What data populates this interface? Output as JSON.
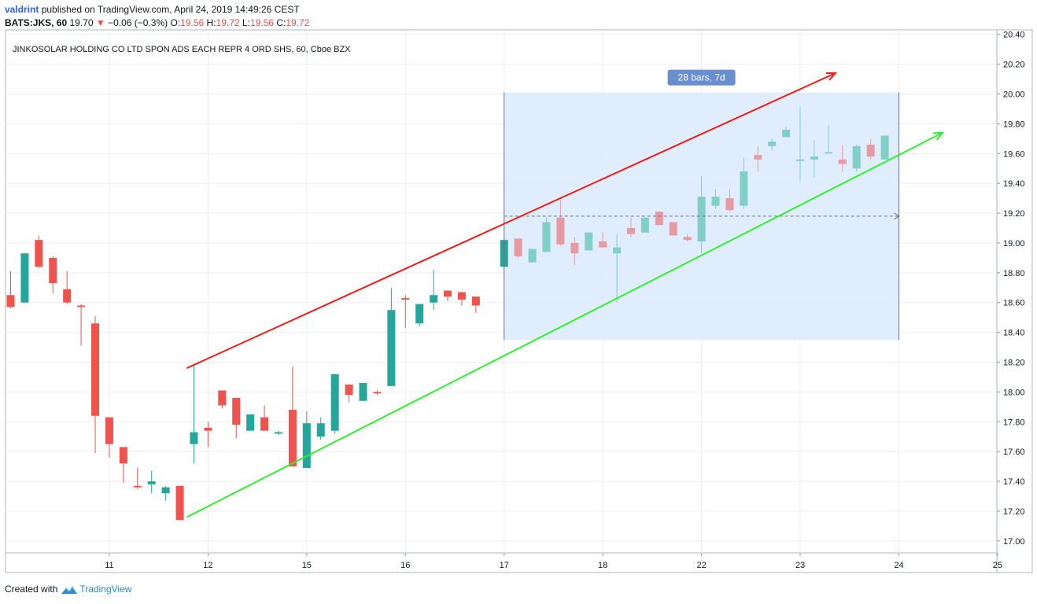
{
  "header": {
    "author": "valdrint",
    "published_text": "published on TradingView.com, April 24, 2019 14:49:26 CEST",
    "symbol": "BATS:JKS, 60",
    "last": "19.70",
    "change": "−0.06 (−0.3%)",
    "open_label": "O:",
    "open": "19.56",
    "high_label": "H:",
    "high": "19.72",
    "low_label": "L:",
    "low": "19.56",
    "close_label": "C:",
    "close": "19.72"
  },
  "footer": {
    "created_with": "Created with",
    "brand": "TradingView"
  },
  "colors": {
    "up": "#26a69a",
    "down": "#ef5350",
    "up_light": "#82cfc6",
    "down_light": "#e89aa2",
    "red_line": "#f01c1c",
    "green_line": "#33ee33",
    "range_fill": "#dcebfc",
    "range_label_bg": "#6a8fcf"
  },
  "chart_data": {
    "type": "candlestick",
    "title": "JINKOSOLAR HOLDING CO LTD SPON ADS EACH REPR 4 ORD SHS, 60, Cboe BZX",
    "ylim": [
      16.92,
      20.43
    ],
    "y_ticks": [
      "20.40",
      "20.20",
      "20.00",
      "19.80",
      "19.60",
      "19.40",
      "19.20",
      "19.00",
      "18.80",
      "18.60",
      "18.40",
      "18.20",
      "18.00",
      "17.80",
      "17.60",
      "17.40",
      "17.20",
      "17.00"
    ],
    "x_ticks": [
      {
        "label": "11",
        "bar": 7
      },
      {
        "label": "12",
        "bar": 14
      },
      {
        "label": "15",
        "bar": 21
      },
      {
        "label": "16",
        "bar": 28
      },
      {
        "label": "17",
        "bar": 35
      },
      {
        "label": "18",
        "bar": 42
      },
      {
        "label": "22",
        "bar": 49
      },
      {
        "label": "23",
        "bar": 56
      },
      {
        "label": "24",
        "bar": 63
      },
      {
        "label": "25",
        "bar": 70
      }
    ],
    "candles": [
      {
        "o": 18.65,
        "h": 18.81,
        "l": 18.56,
        "c": 18.57
      },
      {
        "o": 18.6,
        "h": 18.93,
        "l": 18.6,
        "c": 18.93
      },
      {
        "o": 19.02,
        "h": 19.05,
        "l": 18.83,
        "c": 18.84
      },
      {
        "o": 18.9,
        "h": 18.91,
        "l": 18.66,
        "c": 18.73
      },
      {
        "o": 18.69,
        "h": 18.81,
        "l": 18.59,
        "c": 18.6
      },
      {
        "o": 18.58,
        "h": 18.59,
        "l": 18.31,
        "c": 18.57
      },
      {
        "o": 18.46,
        "h": 18.51,
        "l": 17.59,
        "c": 17.84
      },
      {
        "o": 17.83,
        "h": 17.83,
        "l": 17.56,
        "c": 17.65
      },
      {
        "o": 17.63,
        "h": 17.63,
        "l": 17.39,
        "c": 17.52
      },
      {
        "o": 17.37,
        "h": 17.49,
        "l": 17.35,
        "c": 17.36
      },
      {
        "o": 17.38,
        "h": 17.47,
        "l": 17.32,
        "c": 17.4
      },
      {
        "o": 17.32,
        "h": 17.37,
        "l": 17.27,
        "c": 17.36
      },
      {
        "o": 17.37,
        "h": 17.37,
        "l": 17.14,
        "c": 17.14
      },
      {
        "o": 17.65,
        "h": 18.19,
        "l": 17.52,
        "c": 17.73
      },
      {
        "o": 17.76,
        "h": 17.8,
        "l": 17.63,
        "c": 17.74
      },
      {
        "o": 18.01,
        "h": 18.01,
        "l": 17.89,
        "c": 17.91
      },
      {
        "o": 17.96,
        "h": 17.96,
        "l": 17.69,
        "c": 17.78
      },
      {
        "o": 17.74,
        "h": 17.85,
        "l": 17.74,
        "c": 17.85
      },
      {
        "o": 17.83,
        "h": 17.91,
        "l": 17.74,
        "c": 17.74
      },
      {
        "o": 17.72,
        "h": 17.74,
        "l": 17.71,
        "c": 17.73
      },
      {
        "o": 17.88,
        "h": 18.17,
        "l": 17.5,
        "c": 17.5
      },
      {
        "o": 17.49,
        "h": 17.87,
        "l": 17.49,
        "c": 17.79
      },
      {
        "o": 17.7,
        "h": 17.83,
        "l": 17.68,
        "c": 17.79
      },
      {
        "o": 17.74,
        "h": 18.12,
        "l": 17.72,
        "c": 18.12
      },
      {
        "o": 18.05,
        "h": 18.05,
        "l": 17.93,
        "c": 17.98
      },
      {
        "o": 17.94,
        "h": 18.06,
        "l": 17.94,
        "c": 18.06
      },
      {
        "o": 18.0,
        "h": 18.01,
        "l": 17.98,
        "c": 17.99
      },
      {
        "o": 18.04,
        "h": 18.7,
        "l": 18.04,
        "c": 18.55
      },
      {
        "o": 18.63,
        "h": 18.65,
        "l": 18.43,
        "c": 18.62
      },
      {
        "o": 18.46,
        "h": 18.59,
        "l": 18.44,
        "c": 18.59
      },
      {
        "o": 18.6,
        "h": 18.82,
        "l": 18.55,
        "c": 18.65
      },
      {
        "o": 18.68,
        "h": 18.68,
        "l": 18.61,
        "c": 18.64
      },
      {
        "o": 18.67,
        "h": 18.67,
        "l": 18.58,
        "c": 18.62
      },
      {
        "o": 18.64,
        "h": 18.64,
        "l": 18.53,
        "c": 18.58
      },
      null,
      {
        "o": 18.84,
        "h": 19.02,
        "l": 18.84,
        "c": 19.02
      },
      {
        "o": 19.03,
        "h": 19.03,
        "l": 18.9,
        "c": 18.91
      },
      {
        "o": 18.87,
        "h": 18.96,
        "l": 18.87,
        "c": 18.96
      },
      {
        "o": 18.94,
        "h": 19.17,
        "l": 18.94,
        "c": 19.14
      },
      {
        "o": 19.17,
        "h": 19.29,
        "l": 18.98,
        "c": 18.99
      },
      {
        "o": 19.0,
        "h": 19.04,
        "l": 18.85,
        "c": 18.93
      },
      {
        "o": 18.95,
        "h": 19.07,
        "l": 18.95,
        "c": 19.07
      },
      {
        "o": 19.01,
        "h": 19.07,
        "l": 18.97,
        "c": 18.97
      },
      {
        "o": 18.93,
        "h": 19.06,
        "l": 18.6,
        "c": 18.97
      },
      {
        "o": 19.1,
        "h": 19.17,
        "l": 19.04,
        "c": 19.06
      },
      {
        "o": 19.07,
        "h": 19.17,
        "l": 19.07,
        "c": 19.17
      },
      {
        "o": 19.21,
        "h": 19.21,
        "l": 19.12,
        "c": 19.12
      },
      {
        "o": 19.14,
        "h": 19.14,
        "l": 19.05,
        "c": 19.05
      },
      {
        "o": 19.04,
        "h": 19.06,
        "l": 19.01,
        "c": 19.02
      },
      {
        "o": 19.01,
        "h": 19.45,
        "l": 18.93,
        "c": 19.31
      },
      {
        "o": 19.25,
        "h": 19.36,
        "l": 19.23,
        "c": 19.31
      },
      {
        "o": 19.3,
        "h": 19.36,
        "l": 19.21,
        "c": 19.22
      },
      {
        "o": 19.25,
        "h": 19.57,
        "l": 19.23,
        "c": 19.48
      },
      {
        "o": 19.59,
        "h": 19.65,
        "l": 19.48,
        "c": 19.56
      },
      {
        "o": 19.65,
        "h": 19.7,
        "l": 19.62,
        "c": 19.68
      },
      {
        "o": 19.71,
        "h": 19.78,
        "l": 19.71,
        "c": 19.76
      },
      {
        "o": 19.55,
        "h": 19.91,
        "l": 19.42,
        "c": 19.56
      },
      {
        "o": 19.56,
        "h": 19.69,
        "l": 19.44,
        "c": 19.58
      },
      {
        "o": 19.6,
        "h": 19.79,
        "l": 19.6,
        "c": 19.61
      },
      {
        "o": 19.56,
        "h": 19.66,
        "l": 19.48,
        "c": 19.53
      },
      {
        "o": 19.5,
        "h": 19.66,
        "l": 19.48,
        "c": 19.65
      },
      {
        "o": 19.66,
        "h": 19.7,
        "l": 19.56,
        "c": 19.58
      },
      {
        "o": 19.56,
        "h": 19.72,
        "l": 19.56,
        "c": 19.72
      }
    ],
    "drawings": {
      "red_trendline": {
        "from": {
          "bar": 12.5,
          "price": 18.16
        },
        "to": {
          "bar": 58.5,
          "price": 20.14
        }
      },
      "green_trendline": {
        "from": {
          "bar": 12.5,
          "price": 17.16
        },
        "to": {
          "bar": 66.1,
          "price": 19.74
        }
      },
      "date_range": {
        "from_bar": 35,
        "to_bar": 63,
        "top": 20.01,
        "bottom": 18.35,
        "mid_price": 19.18,
        "label": "28 bars, 7d"
      }
    }
  }
}
